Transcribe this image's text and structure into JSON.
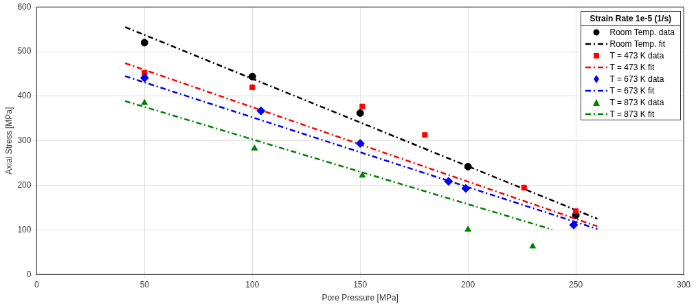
{
  "chart_data": {
    "type": "scatter",
    "xlabel": "Pore Pressure [MPa]",
    "ylabel": "Axial Stress [MPa]",
    "legend_title": "Strain Rate 1e-5 (1/s)",
    "legend": "top right",
    "grid": true,
    "xlim": [
      0,
      300
    ],
    "xticks": [
      0,
      50,
      100,
      150,
      200,
      250,
      300
    ],
    "ylim": [
      0,
      600
    ],
    "yticks": [
      0,
      100,
      200,
      300,
      400,
      500,
      600
    ],
    "series": [
      {
        "name": "Room Temp. data",
        "marker": "circle",
        "color": "#000000",
        "x": [
          50,
          100,
          150,
          200,
          250
        ],
        "values": [
          520,
          444,
          362,
          242,
          133
        ]
      },
      {
        "name": "Room Temp. fit",
        "type": "line",
        "marker": "none",
        "line_style": "dashed",
        "color": "#000000",
        "x": [
          41,
          260
        ],
        "values": [
          555,
          125
        ]
      },
      {
        "name": "T = 473 K data",
        "marker": "square",
        "color": "#ff0000",
        "x": [
          50,
          100,
          151,
          180,
          226,
          250
        ],
        "values": [
          452,
          420,
          377,
          313,
          195,
          142
        ]
      },
      {
        "name": "T = 473 K fit",
        "type": "line",
        "marker": "none",
        "line_style": "dashed",
        "color": "#ff0000",
        "x": [
          41,
          260
        ],
        "values": [
          474,
          108
        ]
      },
      {
        "name": "T = 673 K data",
        "marker": "diamond",
        "color": "#0000ff",
        "x": [
          50,
          104,
          150,
          191,
          199,
          249
        ],
        "values": [
          441,
          367,
          294,
          209,
          193,
          111
        ]
      },
      {
        "name": "T = 673 K fit",
        "type": "line",
        "marker": "none",
        "line_style": "dashed",
        "color": "#0000ff",
        "x": [
          41,
          260
        ],
        "values": [
          445,
          102
        ]
      },
      {
        "name": "T = 873 K data",
        "marker": "triangle",
        "color": "#008000",
        "x": [
          50,
          101,
          151,
          200,
          230
        ],
        "values": [
          385,
          283,
          222,
          101,
          63
        ]
      },
      {
        "name": "T = 873 K fit",
        "type": "line",
        "marker": "none",
        "line_style": "dashed",
        "color": "#008000",
        "x": [
          41,
          239
        ],
        "values": [
          389,
          101
        ]
      }
    ]
  }
}
